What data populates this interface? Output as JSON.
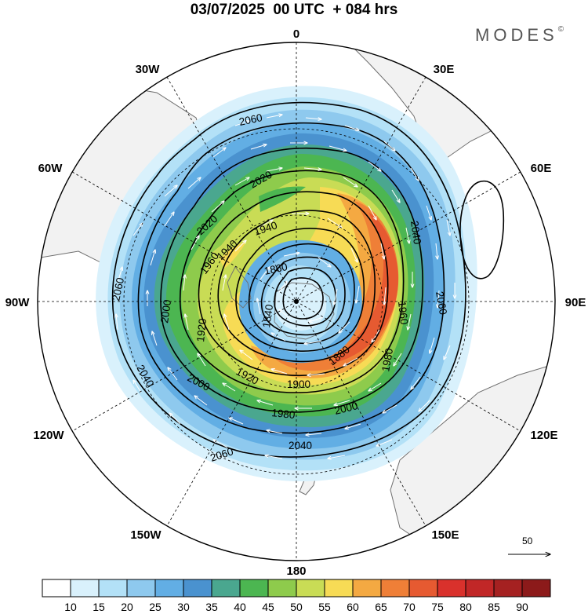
{
  "header": {
    "title": "03/07/2025  00 UTC  + 084 hrs",
    "brand": "MODES",
    "brand_mark": "©"
  },
  "map": {
    "projection": "south-polar-stereographic",
    "longitude_labels": [
      {
        "text": "0",
        "lon": 0
      },
      {
        "text": "30E",
        "lon": 30
      },
      {
        "text": "60E",
        "lon": 60
      },
      {
        "text": "90E",
        "lon": 90
      },
      {
        "text": "120E",
        "lon": 120
      },
      {
        "text": "150E",
        "lon": 150
      },
      {
        "text": "180",
        "lon": 180
      },
      {
        "text": "150W",
        "lon": -150
      },
      {
        "text": "120W",
        "lon": -120
      },
      {
        "text": "90W",
        "lon": -90
      },
      {
        "text": "60W",
        "lon": -60
      },
      {
        "text": "30W",
        "lon": -30
      }
    ],
    "contour_labels": [
      "2060",
      "2060",
      "2060",
      "2060",
      "2040",
      "2040",
      "2040",
      "2020",
      "2020",
      "2000",
      "2000",
      "2000",
      "1980",
      "1980",
      "1960",
      "1960",
      "1940",
      "1940",
      "1920",
      "1920",
      "1900",
      "1880",
      "1860",
      "1840"
    ],
    "vector_reference": {
      "value": "50"
    },
    "colors": {
      "land": "#f2f2f2",
      "coast": "#6e6e6e",
      "grid": "#000000",
      "contour": "#000000",
      "vector": "#ffffff"
    }
  },
  "colorbar": {
    "labels": [
      "10",
      "15",
      "20",
      "25",
      "30",
      "35",
      "40",
      "45",
      "50",
      "55",
      "60",
      "65",
      "70",
      "75",
      "80",
      "85",
      "90"
    ],
    "colors": [
      "#ffffff",
      "#d9f1fc",
      "#b3e1f7",
      "#8ec9ee",
      "#62aee4",
      "#4a92cf",
      "#4aa78f",
      "#4cb651",
      "#8ecb4c",
      "#c9dc55",
      "#f7db55",
      "#f4a942",
      "#ef7f37",
      "#e65a31",
      "#d9312c",
      "#c12727",
      "#a52121",
      "#8c1a1a"
    ]
  }
}
